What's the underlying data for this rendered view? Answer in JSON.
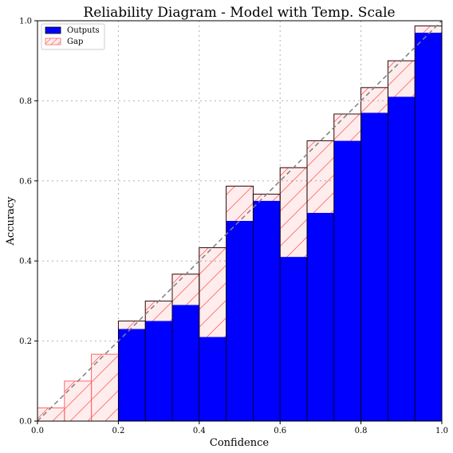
{
  "chart_data": {
    "type": "bar",
    "title": "Reliability Diagram - Model with Temp. Scale",
    "xlabel": "Confidence",
    "ylabel": "Accuracy",
    "xlim": [
      0,
      1
    ],
    "ylim": [
      0,
      1
    ],
    "grid": true,
    "legend_position": "top-left",
    "bin_width": 0.0667,
    "bin_starts": [
      0.0,
      0.0667,
      0.1333,
      0.2,
      0.2667,
      0.3333,
      0.4,
      0.4667,
      0.5333,
      0.6,
      0.6667,
      0.7333,
      0.8,
      0.8667,
      0.9333
    ],
    "x_ticks": [
      "0.0",
      "0.2",
      "0.4",
      "0.6",
      "0.8",
      "1.0"
    ],
    "y_ticks": [
      "0.0",
      "0.2",
      "0.4",
      "0.6",
      "0.8",
      "1.0"
    ],
    "series": [
      {
        "name": "Outputs",
        "color": "#0000ff",
        "values": [
          0.0,
          0.0,
          0.0,
          0.23,
          0.25,
          0.29,
          0.21,
          0.5,
          0.55,
          0.41,
          0.52,
          0.7,
          0.77,
          0.81,
          0.97
        ]
      },
      {
        "name": "Gap",
        "color": "#ff6666",
        "values": [
          0.033,
          0.1,
          0.167,
          0.25,
          0.3,
          0.367,
          0.433,
          0.587,
          0.567,
          0.633,
          0.7,
          0.767,
          0.833,
          0.9,
          0.987
        ]
      }
    ]
  }
}
